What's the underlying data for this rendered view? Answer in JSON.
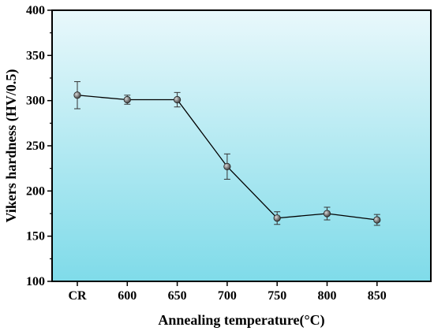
{
  "chart_data": {
    "type": "line",
    "title": "",
    "xlabel": "Annealing temperature(°C)",
    "ylabel": "Vikers hardness (HV/0.5)",
    "categories": [
      "CR",
      "600",
      "650",
      "700",
      "750",
      "800",
      "850"
    ],
    "series": [
      {
        "values": [
          306,
          301,
          301,
          227,
          170,
          175,
          168
        ],
        "errors": [
          15,
          5,
          8,
          14,
          7,
          7,
          6
        ]
      }
    ],
    "ylim": [
      100,
      400
    ],
    "yticks": [
      100,
      150,
      200,
      250,
      300,
      350,
      400
    ],
    "grid": false,
    "legend": "none",
    "colors": {
      "background_top": "#e9f8fb",
      "background_bottom": "#7fdbe9",
      "line": "#000000",
      "marker": "#555555"
    }
  }
}
